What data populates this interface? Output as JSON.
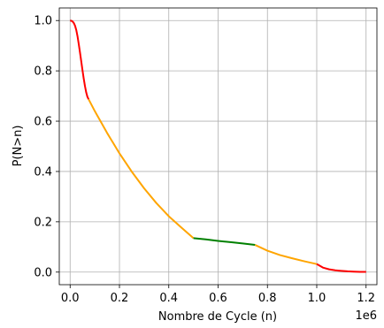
{
  "chart_data": {
    "type": "line",
    "title": "",
    "xlabel": "Nombre de Cycle (n)",
    "ylabel": "P(N>n)",
    "x_offset_label": "1e6",
    "x_scale": 1000000,
    "xlim": [
      -44000,
      1244000
    ],
    "ylim": [
      -0.05,
      1.05
    ],
    "grid": true,
    "x_ticks": [
      {
        "value": 0,
        "label": "0.0"
      },
      {
        "value": 200000,
        "label": "0.2"
      },
      {
        "value": 400000,
        "label": "0.4"
      },
      {
        "value": 600000,
        "label": "0.6"
      },
      {
        "value": 800000,
        "label": "0.8"
      },
      {
        "value": 1000000,
        "label": "1.0"
      },
      {
        "value": 1200000,
        "label": "1.2"
      }
    ],
    "y_ticks": [
      {
        "value": 0.0,
        "label": "0.0"
      },
      {
        "value": 0.2,
        "label": "0.2"
      },
      {
        "value": 0.4,
        "label": "0.4"
      },
      {
        "value": 0.6,
        "label": "0.6"
      },
      {
        "value": 0.8,
        "label": "0.8"
      },
      {
        "value": 1.0,
        "label": "1.0"
      }
    ],
    "series": [
      {
        "color": "#ff0000",
        "x": [
          0,
          5000,
          10000,
          15000,
          20000,
          25000,
          30000,
          35000,
          40000,
          45000,
          50000,
          55000,
          60000,
          65000,
          70000,
          75000
        ],
        "y": [
          1.0,
          0.999,
          0.996,
          0.99,
          0.979,
          0.962,
          0.937,
          0.906,
          0.873,
          0.838,
          0.803,
          0.77,
          0.74,
          0.715,
          0.697,
          0.687
        ]
      },
      {
        "color": "#ffa500",
        "x": [
          75000,
          100000,
          150000,
          200000,
          250000,
          300000,
          350000,
          400000,
          450000,
          500000
        ],
        "y": [
          0.687,
          0.64,
          0.553,
          0.472,
          0.399,
          0.333,
          0.274,
          0.222,
          0.178,
          0.135
        ]
      },
      {
        "color": "#008000",
        "x": [
          500000,
          550000,
          600000,
          650000,
          700000,
          750000
        ],
        "y": [
          0.135,
          0.13,
          0.124,
          0.119,
          0.114,
          0.108
        ]
      },
      {
        "color": "#ffa500",
        "x": [
          750000,
          800000,
          850000,
          900000,
          950000,
          1000000
        ],
        "y": [
          0.108,
          0.085,
          0.068,
          0.055,
          0.043,
          0.032
        ]
      },
      {
        "color": "#ff0000",
        "x": [
          1000000,
          1025000,
          1050000,
          1075000,
          1100000,
          1125000,
          1150000,
          1175000,
          1200000
        ],
        "y": [
          0.032,
          0.018,
          0.011,
          0.007,
          0.005,
          0.003,
          0.002,
          0.001,
          0.001
        ]
      }
    ]
  }
}
